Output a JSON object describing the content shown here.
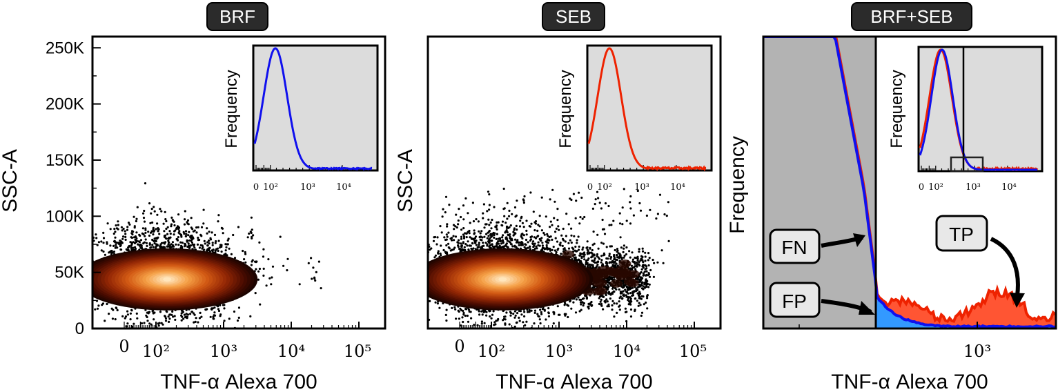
{
  "chart_data": [
    {
      "type": "scatter",
      "title": "BRF",
      "xlabel": "TNF-α Alexa 700",
      "ylabel": "SSC-A",
      "x_scale": "biexponential",
      "x_tick_labels": [
        "0",
        "10²",
        "10³",
        "10⁴",
        "10⁵"
      ],
      "y_tick_labels": [
        "0",
        "50K",
        "100K",
        "150K",
        "200K",
        "250K"
      ],
      "ylim": [
        0,
        260000
      ],
      "density_center": {
        "x": 140,
        "y": 45000
      },
      "population_x_range": [
        0,
        600
      ],
      "inset": {
        "ylabel": "Frequency",
        "x_tick_labels": [
          "0",
          "10²",
          "10³",
          "10⁴"
        ],
        "series": [
          {
            "color": "#1010ee",
            "peak_x": 140
          }
        ]
      }
    },
    {
      "type": "scatter",
      "title": "SEB",
      "xlabel": "TNF-α Alexa 700",
      "ylabel": "SSC-A",
      "x_scale": "biexponential",
      "x_tick_labels": [
        "0",
        "10²",
        "10³",
        "10⁴",
        "10⁵"
      ],
      "ylim": [
        0,
        260000
      ],
      "density_center": {
        "x": 140,
        "y": 45000
      },
      "population_x_range": [
        0,
        40000
      ],
      "inset": {
        "ylabel": "Frequency",
        "x_tick_labels": [
          "0",
          "10²",
          "10³",
          "10⁴"
        ],
        "series": [
          {
            "color": "#ee2200",
            "peak_x": 140
          }
        ]
      }
    },
    {
      "type": "area",
      "title": "BRF+SEB",
      "xlabel": "TNF-α Alexa 700",
      "ylabel": "Frequency",
      "x_tick_labels": [
        "10³"
      ],
      "threshold": 500,
      "annotations": [
        "FN",
        "FP",
        "TP"
      ],
      "series": [
        {
          "color": "#1010ee"
        },
        {
          "color": "#ee2200"
        }
      ],
      "inset": {
        "ylabel": "Frequency",
        "x_tick_labels": [
          "0",
          "10²",
          "10³",
          "10⁴"
        ]
      }
    }
  ]
}
